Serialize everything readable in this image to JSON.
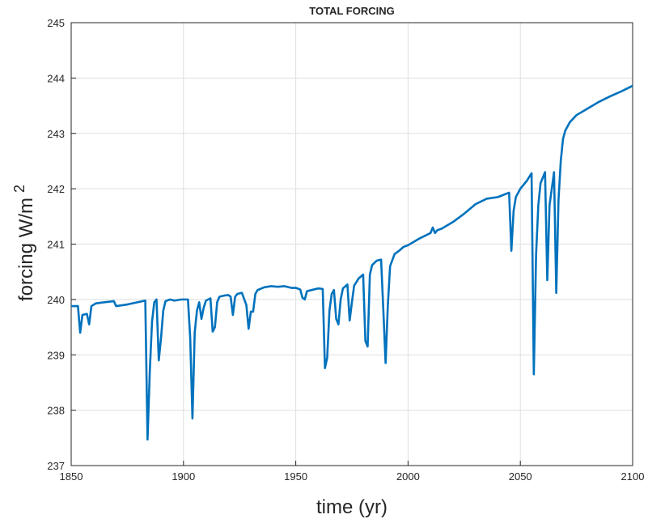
{
  "chart_data": {
    "type": "line",
    "title": "TOTAL FORCING",
    "xlabel": "time (yr)",
    "ylabel": "forcing W/m",
    "ylabel_superscript": "2",
    "xlim": [
      1850,
      2100
    ],
    "xticks": [
      1850,
      1900,
      1950,
      2000,
      2050,
      2100
    ],
    "ylim": [
      237,
      245
    ],
    "yticks": [
      237,
      238,
      239,
      240,
      241,
      242,
      243,
      244,
      245
    ],
    "grid": true,
    "x": [
      1850,
      1853,
      1854,
      1855,
      1857,
      1858,
      1859,
      1861,
      1869,
      1870,
      1875,
      1883,
      1884,
      1885,
      1886,
      1887,
      1888,
      1889,
      1890,
      1891,
      1892,
      1894,
      1896,
      1899,
      1902,
      1903,
      1904,
      1905,
      1906,
      1907,
      1908,
      1909,
      1910,
      1912,
      1913,
      1914,
      1915,
      1916,
      1918,
      1920,
      1921,
      1922,
      1923,
      1924,
      1926,
      1928,
      1929,
      1930,
      1931,
      1932,
      1933,
      1936,
      1939,
      1942,
      1945,
      1948,
      1950,
      1952,
      1953,
      1954,
      1955,
      1958,
      1960,
      1962,
      1963,
      1964,
      1965,
      1966,
      1967,
      1968,
      1969,
      1970,
      1971,
      1973,
      1974,
      1975,
      1976,
      1978,
      1980,
      1981,
      1982,
      1983,
      1984,
      1986,
      1988,
      1989,
      1990,
      1991,
      1992,
      1994,
      1996,
      1998,
      2000,
      2005,
      2010,
      2011,
      2012,
      2013,
      2015,
      2020,
      2025,
      2030,
      2035,
      2040,
      2045,
      2046,
      2047,
      2048,
      2050,
      2053,
      2055,
      2056,
      2057,
      2058,
      2059,
      2061,
      2062,
      2063,
      2065,
      2066,
      2067,
      2068,
      2069,
      2070,
      2072,
      2075,
      2080,
      2085,
      2090,
      2095,
      2100
    ],
    "series": [
      {
        "color": "#0072bd",
        "values": [
          239.88,
          239.88,
          239.4,
          239.72,
          239.74,
          239.55,
          239.88,
          239.93,
          239.97,
          239.88,
          239.91,
          239.98,
          237.47,
          238.7,
          239.6,
          239.95,
          240.0,
          238.9,
          239.3,
          239.8,
          239.97,
          240.0,
          239.98,
          240.0,
          240.0,
          239.3,
          237.85,
          239.4,
          239.8,
          239.95,
          239.65,
          239.85,
          239.98,
          240.02,
          239.42,
          239.5,
          239.95,
          240.05,
          240.07,
          240.08,
          240.05,
          239.72,
          240.05,
          240.1,
          240.12,
          239.9,
          239.47,
          239.78,
          239.78,
          240.1,
          240.17,
          240.22,
          240.24,
          240.23,
          240.24,
          240.21,
          240.21,
          240.18,
          240.03,
          240.0,
          240.15,
          240.18,
          240.2,
          240.19,
          238.76,
          238.95,
          239.8,
          240.1,
          240.17,
          239.65,
          239.55,
          240.0,
          240.2,
          240.27,
          239.62,
          239.95,
          240.25,
          240.38,
          240.45,
          239.25,
          239.15,
          240.45,
          240.62,
          240.7,
          240.72,
          239.8,
          238.85,
          239.9,
          240.6,
          240.82,
          240.88,
          240.95,
          240.98,
          241.1,
          241.2,
          241.3,
          241.2,
          241.25,
          241.28,
          241.4,
          241.55,
          241.72,
          241.82,
          241.85,
          241.93,
          240.88,
          241.6,
          241.85,
          242.0,
          242.15,
          242.28,
          238.65,
          240.8,
          241.7,
          242.1,
          242.3,
          240.35,
          241.7,
          242.3,
          240.12,
          241.8,
          242.5,
          242.9,
          243.05,
          243.2,
          243.33,
          243.45,
          243.57,
          243.67,
          243.76,
          243.86
        ]
      }
    ]
  }
}
